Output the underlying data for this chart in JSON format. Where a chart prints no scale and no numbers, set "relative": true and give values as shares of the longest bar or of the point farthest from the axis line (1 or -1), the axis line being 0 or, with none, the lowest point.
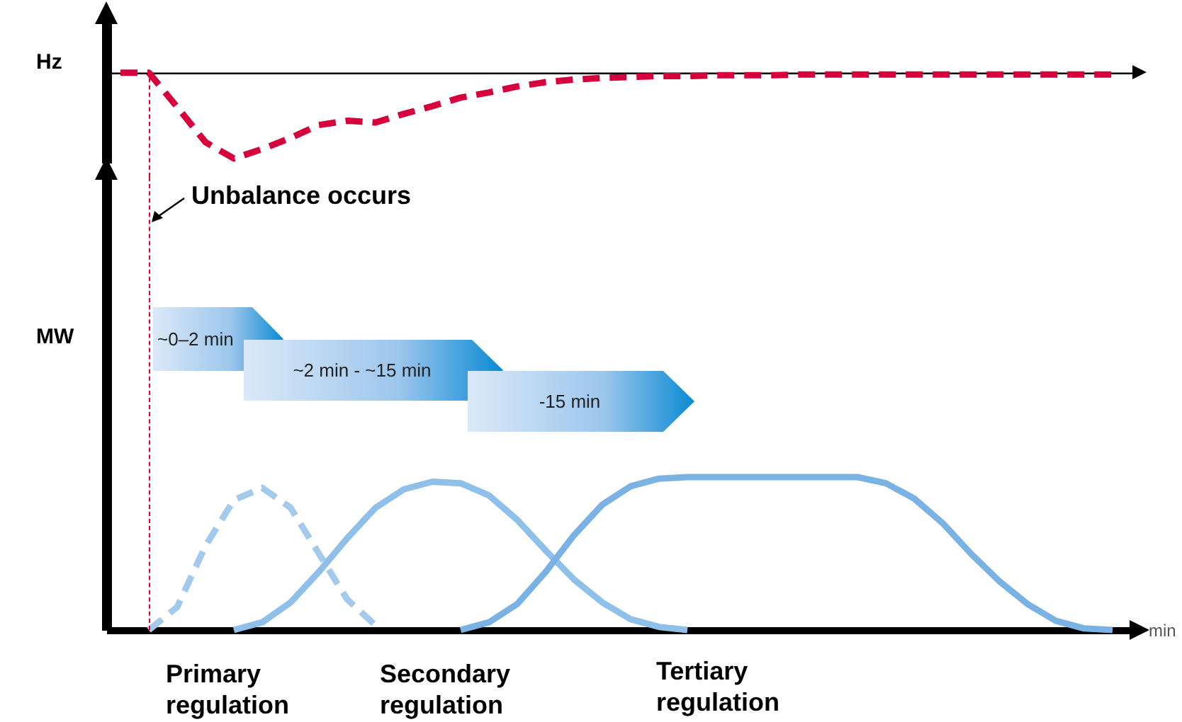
{
  "chart_data": [
    {
      "type": "line",
      "ylabel": "Hz",
      "relative": true,
      "line_style": "dashed",
      "categories": [
        null,
        null,
        null,
        null,
        null,
        null,
        null,
        null,
        null,
        null,
        null,
        null,
        null,
        null,
        null,
        null,
        null,
        null,
        null,
        null,
        null,
        null,
        null,
        null,
        null,
        null,
        null,
        null,
        null,
        null,
        null,
        null,
        null,
        null,
        null,
        null
      ],
      "series": [
        {
          "color": "#d6003c",
          "values": [
            0,
            0,
            -0.4,
            -0.81,
            -1,
            -0.89,
            -0.76,
            -0.61,
            -0.56,
            -0.58,
            -0.48,
            -0.39,
            -0.29,
            -0.23,
            -0.16,
            -0.11,
            -0.08,
            -0.06,
            -0.05,
            -0.04,
            -0.04,
            -0.03,
            -0.03,
            -0.03,
            -0.02,
            -0.02,
            -0.02,
            -0.02,
            -0.02,
            -0.02,
            -0.02,
            -0.02,
            -0.02,
            -0.02,
            -0.02,
            -0.02
          ]
        }
      ]
    },
    {
      "type": "line",
      "ylabel": "MW",
      "xlabel": "min",
      "relative": true,
      "categories": [
        null,
        null,
        null,
        null,
        null,
        null,
        null,
        null,
        null,
        null,
        null,
        null,
        null,
        null,
        null,
        null,
        null,
        null,
        null,
        null,
        null,
        null,
        null,
        null,
        null,
        null,
        null,
        null,
        null,
        null,
        null,
        null,
        null,
        null,
        null,
        null
      ],
      "series": [
        {
          "color": "#a3c9ec",
          "line_style": "dashed",
          "values": [
            null,
            0,
            0.15,
            0.55,
            0.85,
            0.93,
            0.8,
            0.5,
            0.2,
            0.03,
            null,
            null,
            null,
            null,
            null,
            null,
            null,
            null,
            null,
            null,
            null,
            null,
            null,
            null,
            null,
            null,
            null,
            null,
            null,
            null,
            null,
            null,
            null,
            null,
            null,
            null
          ]
        },
        {
          "color": "#8ec0ea",
          "line_style": "solid",
          "values": [
            null,
            null,
            null,
            null,
            0,
            0.05,
            0.18,
            0.38,
            0.6,
            0.8,
            0.92,
            0.97,
            0.96,
            0.88,
            0.72,
            0.52,
            0.33,
            0.18,
            0.07,
            0.02,
            0,
            null,
            null,
            null,
            null,
            null,
            null,
            null,
            null,
            null,
            null,
            null,
            null,
            null,
            null,
            null
          ]
        },
        {
          "color": "#7ab3e3",
          "line_style": "solid",
          "values": [
            null,
            null,
            null,
            null,
            null,
            null,
            null,
            null,
            null,
            null,
            null,
            null,
            0,
            0.05,
            0.17,
            0.38,
            0.62,
            0.82,
            0.94,
            0.99,
            1,
            1,
            1,
            1,
            1,
            1,
            1,
            0.96,
            0.86,
            0.7,
            0.5,
            0.32,
            0.17,
            0.06,
            0.01,
            0
          ]
        }
      ],
      "annotations": [
        "Unbalance occurs",
        "~0–2 min",
        "~2 min - ~15 min",
        "-15 min",
        "Primary regulation",
        "Secondary regulation",
        "Tertiary regulation"
      ]
    }
  ]
}
